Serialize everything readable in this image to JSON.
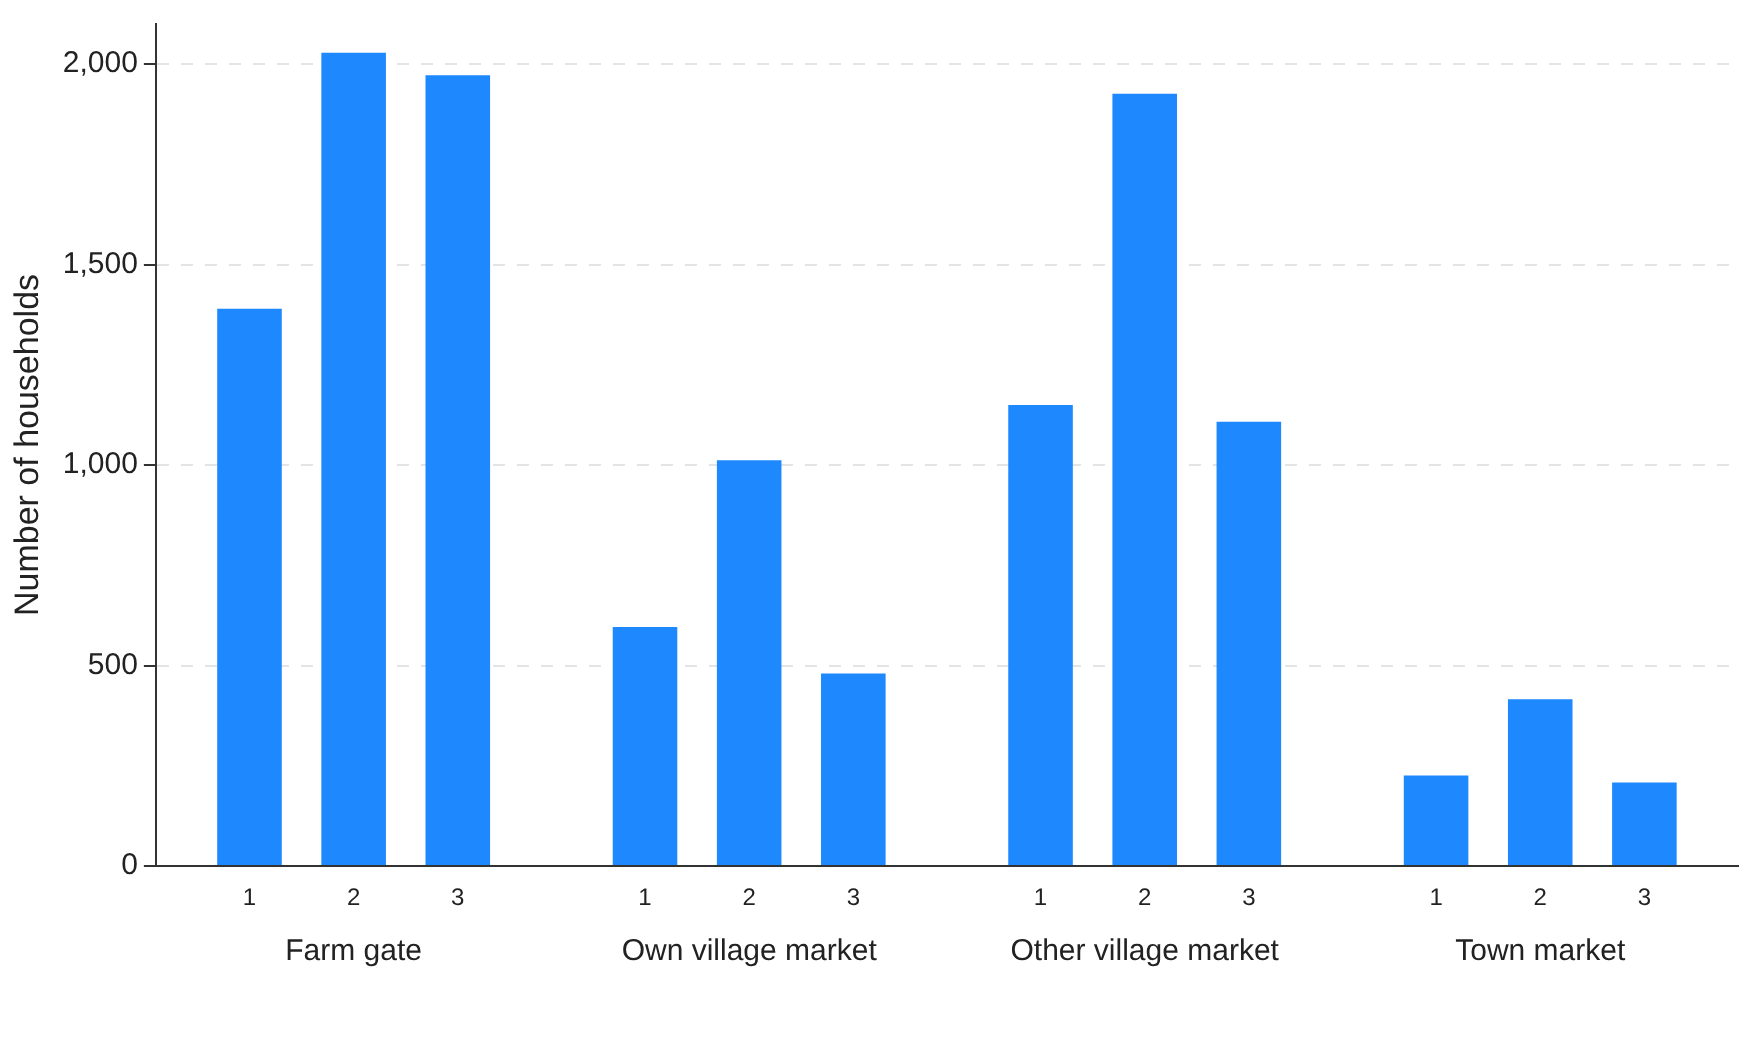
{
  "chart_data": {
    "type": "bar",
    "ylabel": "Number of households",
    "categories": [
      "Farm gate",
      "Own village market",
      "Other village market",
      "Town market"
    ],
    "series": [
      {
        "name": "1",
        "color": "#1e88ff",
        "values": [
          1390,
          596,
          1150,
          226
        ]
      },
      {
        "name": "2",
        "color": "#1e88ff",
        "values": [
          2028,
          1012,
          1926,
          416
        ]
      },
      {
        "name": "3",
        "color": "#1e88ff",
        "values": [
          1972,
          480,
          1108,
          208
        ]
      }
    ],
    "ylim": [
      0,
      2100
    ],
    "yticks": [
      0,
      {
        "value": 500,
        "label": "500"
      },
      {
        "value": 1000,
        "label": "1,000"
      },
      {
        "value": 1500,
        "label": "1,500"
      },
      {
        "value": 2000,
        "label": "2,000"
      }
    ],
    "grid": "y",
    "legend": false
  }
}
